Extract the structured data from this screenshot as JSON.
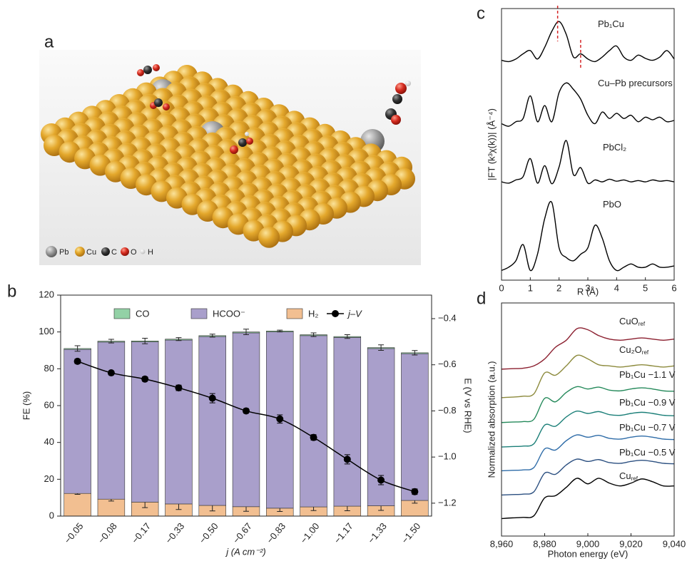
{
  "panel_labels": [
    "a",
    "b",
    "c",
    "d"
  ],
  "illustration": {
    "legend": [
      "Pb",
      "Cu",
      "C",
      "O",
      "H"
    ]
  },
  "chart_data": [
    {
      "type": "bar",
      "stacked": true,
      "categories": [
        "−0.05",
        "−0.08",
        "−0.17",
        "−0.33",
        "−0.50",
        "−0.67",
        "−0.83",
        "−1.00",
        "−1.17",
        "−1.33",
        "−1.50"
      ],
      "series": [
        {
          "name": "CO",
          "color": "#93d1a6",
          "values": [
            0.5,
            0.5,
            0.5,
            0.5,
            0.5,
            0.5,
            0.5,
            0.5,
            0.5,
            0.5,
            0.5
          ],
          "errors": [
            1.5,
            1,
            1.5,
            0.8,
            0.8,
            1.5,
            0.5,
            1,
            1,
            1.5,
            1.2
          ]
        },
        {
          "name": "HCOO⁻",
          "color": "#a99fcb",
          "values": [
            78.2,
            85.3,
            87.0,
            89.0,
            91.7,
            94.4,
            95.7,
            93.0,
            91.6,
            85.4,
            79.7
          ]
        },
        {
          "name": "H₂",
          "color": "#f2bf91",
          "values": [
            12.3,
            9.2,
            7.6,
            6.6,
            5.8,
            5.1,
            4.3,
            5.0,
            5.4,
            5.6,
            8.5
          ],
          "errors": [
            0.5,
            1,
            3,
            3,
            3,
            2.5,
            1.8,
            2,
            2.5,
            2.5,
            1.5
          ]
        },
        {
          "name": "j–V",
          "type": "line",
          "axis": "y2",
          "color": "#000000",
          "values": [
            -0.585,
            -0.635,
            -0.662,
            -0.7,
            -0.745,
            -0.8,
            -0.835,
            -0.915,
            -1.01,
            -1.1,
            -1.15
          ],
          "errors": [
            0.01,
            0.008,
            0.01,
            0.012,
            0.02,
            0.01,
            0.018,
            0.012,
            0.02,
            0.02,
            0.012
          ]
        }
      ],
      "ylim": [
        0,
        120
      ],
      "yticks": [
        0,
        20,
        40,
        60,
        80,
        100,
        120
      ],
      "y2lim": [
        -1.256,
        -0.298
      ],
      "y2ticks": [
        {
          "value": -0.4,
          "label": "−0.4"
        },
        {
          "value": -0.6,
          "label": "−0.6"
        },
        {
          "value": -0.8,
          "label": "−0.8"
        },
        {
          "value": -1.0,
          "label": "−1.0"
        },
        {
          "value": -1.2,
          "label": "−1.2"
        }
      ],
      "ylabel": "FE (%)",
      "y2label": "E (V vs RHE)",
      "xlabel": "j (A cm⁻²)"
    },
    {
      "type": "line",
      "x": [
        0,
        0.25,
        0.5,
        0.75,
        1,
        1.25,
        1.5,
        1.75,
        2,
        2.25,
        2.5,
        2.75,
        3,
        3.25,
        3.5,
        3.75,
        4,
        4.25,
        4.5,
        4.75,
        5,
        5.25,
        5.5,
        5.75,
        6
      ],
      "series": [
        {
          "name": "Pb₁Cu",
          "color": "#000000",
          "values": [
            3.4,
            3.38,
            3.42,
            3.5,
            3.55,
            3.42,
            3.6,
            3.85,
            4.0,
            3.8,
            3.45,
            3.5,
            3.42,
            3.38,
            3.45,
            3.55,
            3.62,
            3.45,
            3.4,
            3.48,
            3.43,
            3.4,
            3.45,
            3.55,
            3.42
          ]
        },
        {
          "name": "Cu–Pb precursors",
          "color": "#000000",
          "values": [
            2.42,
            2.38,
            2.45,
            2.5,
            2.85,
            2.45,
            2.7,
            2.45,
            2.9,
            3.05,
            2.95,
            2.8,
            2.55,
            2.42,
            2.6,
            2.5,
            2.58,
            2.5,
            2.55,
            2.45,
            2.52,
            2.48,
            2.52,
            2.45,
            2.47
          ]
        },
        {
          "name": "PbCl₂",
          "color": "#000000",
          "values": [
            1.52,
            1.5,
            1.55,
            1.6,
            1.88,
            1.5,
            1.77,
            1.49,
            1.75,
            2.16,
            1.63,
            1.74,
            1.5,
            1.55,
            1.52,
            1.56,
            1.53,
            1.55,
            1.52,
            1.54,
            1.52,
            1.55,
            1.53,
            1.54,
            1.52
          ]
        },
        {
          "name": "PbO",
          "color": "#000000",
          "values": [
            0.15,
            0.2,
            0.3,
            0.55,
            0.15,
            0.4,
            0.95,
            1.2,
            0.5,
            0.35,
            0.3,
            0.4,
            0.5,
            0.85,
            0.65,
            0.3,
            0.15,
            0.2,
            0.25,
            0.2,
            0.2,
            0.25,
            0.2,
            0.2,
            0.22
          ]
        }
      ],
      "reference_lines": [
        1.95,
        2.75
      ],
      "reference_color": "#d62728",
      "xlim": [
        0,
        6
      ],
      "xticks": [
        0,
        1,
        2,
        3,
        4,
        5,
        6
      ],
      "ylim": [
        0,
        4.2
      ],
      "xlabel": "R (Å)",
      "ylabel": "|FT (k³χ(k))| (Å⁻⁴)"
    },
    {
      "type": "line",
      "x": [
        8960,
        8965,
        8970,
        8975,
        8980,
        8985,
        8990,
        8995,
        9000,
        9005,
        9010,
        9015,
        9020,
        9025,
        9030,
        9035,
        9040
      ],
      "series": [
        {
          "name": "CuO",
          "subscript": "ref",
          "color": "#8b1f2f",
          "values": [
            7.16,
            7.18,
            7.2,
            7.3,
            7.6,
            8.1,
            8.4,
            8.9,
            8.85,
            8.6,
            8.45,
            8.4,
            8.45,
            8.5,
            8.45,
            8.4,
            8.45
          ]
        },
        {
          "name": "Cu₂O",
          "subscript": "ref",
          "color": "#8c8a3c",
          "values": [
            5.94,
            5.96,
            6.0,
            6.1,
            7.0,
            6.9,
            7.3,
            7.75,
            7.6,
            7.35,
            7.3,
            7.25,
            7.3,
            7.35,
            7.3,
            7.25,
            7.3
          ]
        },
        {
          "name": "Pb₁Cu −1.1 V",
          "color": "#24895a",
          "values": [
            4.87,
            4.89,
            4.91,
            5.01,
            5.91,
            5.76,
            6.16,
            6.41,
            6.31,
            6.39,
            6.26,
            6.23,
            6.31,
            6.36,
            6.31,
            6.23,
            6.21
          ]
        },
        {
          "name": "Pb₁Cu −0.9 V",
          "color": "#1b7f78",
          "values": [
            3.82,
            3.84,
            3.86,
            3.96,
            4.76,
            4.71,
            5.11,
            5.36,
            5.26,
            5.34,
            5.21,
            5.18,
            5.26,
            5.31,
            5.26,
            5.18,
            5.16
          ]
        },
        {
          "name": "Pb₁Cu −0.7 V",
          "color": "#2e6ca8",
          "values": [
            2.8,
            2.82,
            2.84,
            2.94,
            3.74,
            3.69,
            4.09,
            4.34,
            4.24,
            4.32,
            4.19,
            4.16,
            4.24,
            4.29,
            4.24,
            4.16,
            4.14
          ]
        },
        {
          "name": "Pb₁Cu −0.5 V",
          "color": "#2b4f80",
          "values": [
            1.76,
            1.78,
            1.8,
            1.9,
            2.7,
            2.65,
            3.05,
            3.3,
            3.2,
            3.28,
            3.15,
            3.12,
            3.2,
            3.25,
            3.2,
            3.12,
            3.1
          ]
        },
        {
          "name": "Cu",
          "subscript": "ref",
          "color": "#000000",
          "values": [
            0.75,
            0.78,
            0.8,
            0.87,
            1.64,
            1.73,
            2.09,
            2.48,
            2.24,
            2.48,
            2.27,
            2.15,
            2.27,
            2.45,
            2.33,
            2.15,
            2.15
          ]
        }
      ],
      "xlim": [
        8960,
        9040
      ],
      "xticks": [
        {
          "value": 8960,
          "label": "8,960"
        },
        {
          "value": 8980,
          "label": "8,980"
        },
        {
          "value": 9000,
          "label": "9,000"
        },
        {
          "value": 9020,
          "label": "9,020"
        },
        {
          "value": 9040,
          "label": "9,040"
        }
      ],
      "ylim": [
        0,
        10
      ],
      "xlabel": "Photon energy (eV)",
      "ylabel": "Normalized absorption (a.u.)"
    }
  ]
}
